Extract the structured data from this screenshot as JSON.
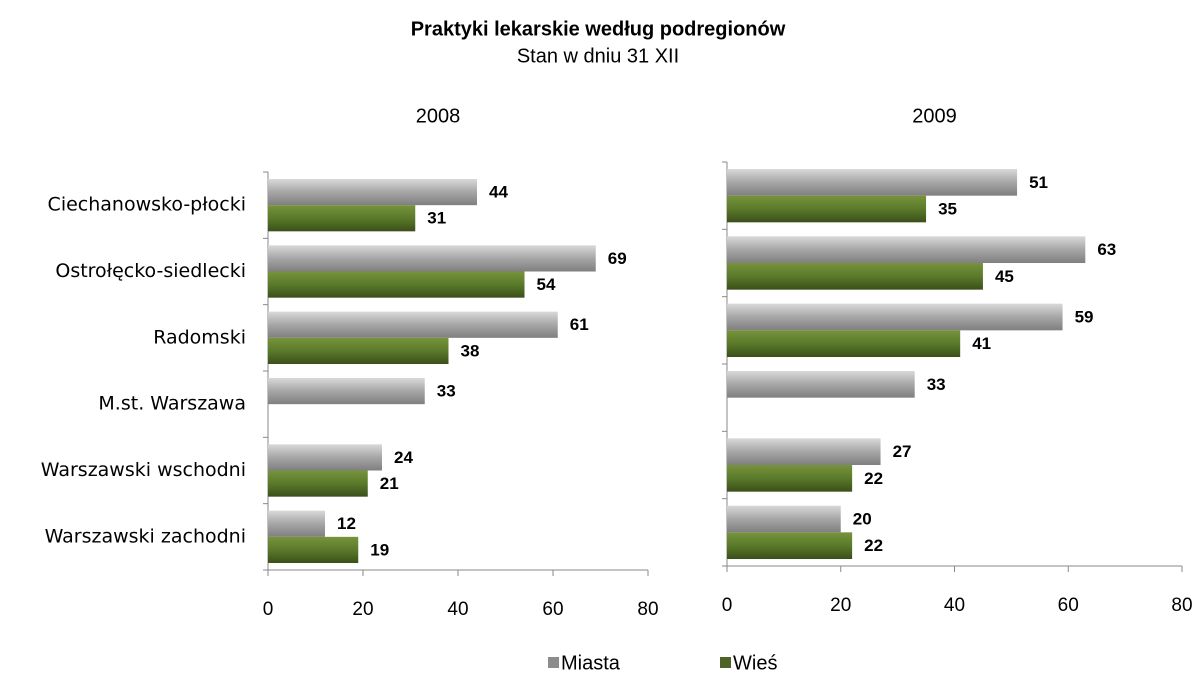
{
  "title": "Praktyki lekarskie według podregionów",
  "subtitle": "Stan w dniu 31 XII",
  "chart_data": [
    {
      "type": "bar",
      "orientation": "horizontal",
      "title": "2008",
      "categories": [
        "Ciechanowsko-płocki",
        "Ostrołęcko-siedlecki",
        "Radomski",
        "M.st. Warszawa",
        "Warszawski wschodni",
        "Warszawski zachodni"
      ],
      "series": [
        {
          "name": "Miasta",
          "color": "#8c8c8c",
          "values": [
            44,
            69,
            61,
            33,
            24,
            12
          ]
        },
        {
          "name": "Wieś",
          "color": "#4f6228",
          "values": [
            31,
            54,
            38,
            null,
            21,
            19
          ]
        }
      ],
      "xlim": [
        0,
        80
      ],
      "xticks": [
        0,
        20,
        40,
        60,
        80
      ]
    },
    {
      "type": "bar",
      "orientation": "horizontal",
      "title": "2009",
      "categories": [
        null,
        null,
        null,
        null,
        null,
        null
      ],
      "series": [
        {
          "color": "#8c8c8c",
          "values": [
            51,
            63,
            59,
            33,
            27,
            20
          ]
        },
        {
          "color": "#4f6228",
          "values": [
            35,
            45,
            41,
            null,
            22,
            22
          ]
        }
      ],
      "xlim": [
        0,
        80
      ],
      "xticks": [
        0,
        20,
        40,
        60,
        80
      ]
    }
  ]
}
